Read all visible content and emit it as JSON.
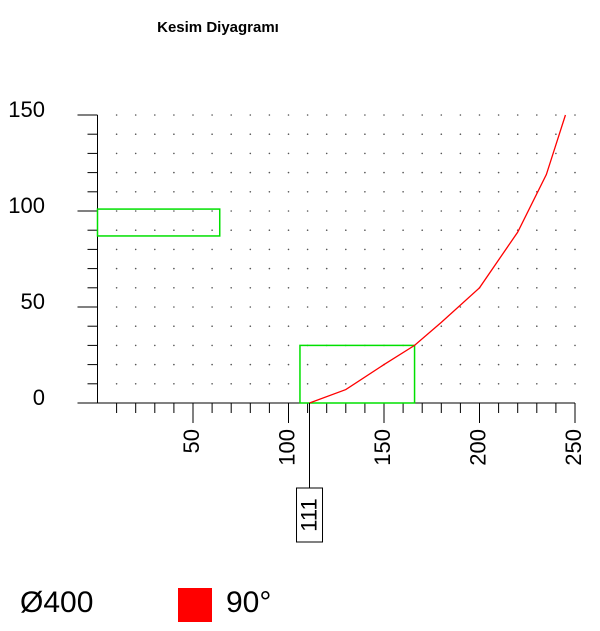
{
  "chart_data": {
    "type": "line",
    "title": "Kesim Diyagramı",
    "diameter_label": "Ø400",
    "xlim": [
      0,
      250
    ],
    "ylim": [
      0,
      150
    ],
    "xticks": [
      50,
      100,
      150,
      200,
      250
    ],
    "yticks": [
      0,
      50,
      100,
      150
    ],
    "xminorticks": [
      10,
      20,
      30,
      40,
      50,
      60,
      70,
      80,
      90,
      100,
      110,
      120,
      130,
      140,
      150,
      160,
      170,
      180,
      190,
      200,
      210,
      220,
      230,
      240,
      250
    ],
    "yminorticks": [
      10,
      20,
      30,
      40,
      50,
      60,
      70,
      80,
      90,
      100,
      110,
      120,
      130,
      140,
      150
    ],
    "grid": true,
    "series": [
      {
        "name": "90°",
        "color": "#ff0000",
        "x": [
          111,
          130,
          150,
          166,
          180,
          200,
          220,
          235,
          245
        ],
        "values": [
          0,
          7,
          20,
          30,
          42,
          60,
          89,
          119,
          150
        ]
      }
    ],
    "rects": [
      {
        "color": "#00e000",
        "x": [
          0,
          64
        ],
        "y": [
          87,
          101
        ]
      },
      {
        "color": "#00e000",
        "x": [
          106,
          166
        ],
        "y": [
          0,
          30
        ]
      }
    ],
    "markers": [
      111
    ]
  }
}
